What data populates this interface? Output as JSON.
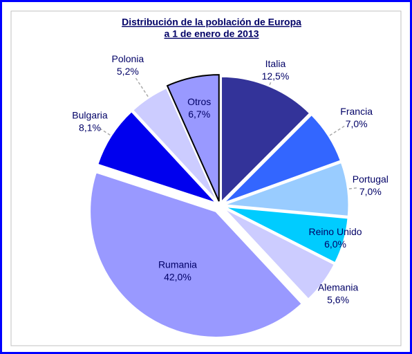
{
  "chart_data": {
    "type": "pie",
    "title": "Distribución de la población de Europa",
    "subtitle": "a 1 de enero de 2013",
    "categories": [
      "Italia",
      "Francia",
      "Portugal",
      "Reino Unido",
      "Alemania",
      "Rumania",
      "Bulgaria",
      "Polonia",
      "Otros"
    ],
    "values": [
      12.5,
      7.0,
      7.0,
      6.0,
      5.6,
      42.0,
      8.1,
      5.2,
      6.7
    ],
    "value_labels": [
      "12,5%",
      "7,0%",
      "7,0%",
      "6,0%",
      "5,6%",
      "42,0%",
      "8,1%",
      "5,2%",
      "6,7%"
    ],
    "colors": [
      "#333399",
      "#3366ff",
      "#99ccff",
      "#00ccff",
      "#ccccff",
      "#9999ff",
      "#0000ee",
      "#ccccff",
      "#9999ff"
    ]
  }
}
